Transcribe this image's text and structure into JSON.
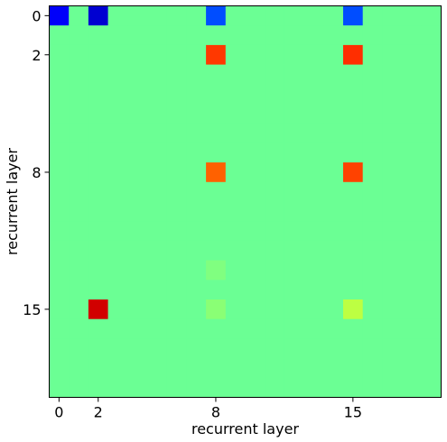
{
  "chart_data": {
    "type": "heatmap",
    "title": "",
    "xlabel": "recurrent layer",
    "ylabel": "recurrent layer",
    "rows": 20,
    "cols": 20,
    "background_value": 0.48,
    "value_range": [
      0,
      1
    ],
    "colormap": "jet",
    "x_ticks": [
      {
        "index": 0,
        "label": "0"
      },
      {
        "index": 2,
        "label": "2"
      },
      {
        "index": 8,
        "label": "8"
      },
      {
        "index": 15,
        "label": "15"
      }
    ],
    "y_ticks": [
      {
        "index": 0,
        "label": "0"
      },
      {
        "index": 2,
        "label": "2"
      },
      {
        "index": 8,
        "label": "8"
      },
      {
        "index": 15,
        "label": "15"
      }
    ],
    "cells": [
      {
        "row": 0,
        "col": 0,
        "value": 0.12
      },
      {
        "row": 0,
        "col": 2,
        "value": 0.08
      },
      {
        "row": 0,
        "col": 8,
        "value": 0.2
      },
      {
        "row": 0,
        "col": 15,
        "value": 0.2
      },
      {
        "row": 2,
        "col": 8,
        "value": 0.82
      },
      {
        "row": 2,
        "col": 15,
        "value": 0.83
      },
      {
        "row": 8,
        "col": 8,
        "value": 0.78
      },
      {
        "row": 8,
        "col": 15,
        "value": 0.81
      },
      {
        "row": 15,
        "col": 2,
        "value": 0.92
      },
      {
        "row": 15,
        "col": 15,
        "value": 0.56
      },
      {
        "row": 13,
        "col": 8,
        "value": 0.5
      },
      {
        "row": 15,
        "col": 8,
        "value": 0.51
      }
    ]
  }
}
